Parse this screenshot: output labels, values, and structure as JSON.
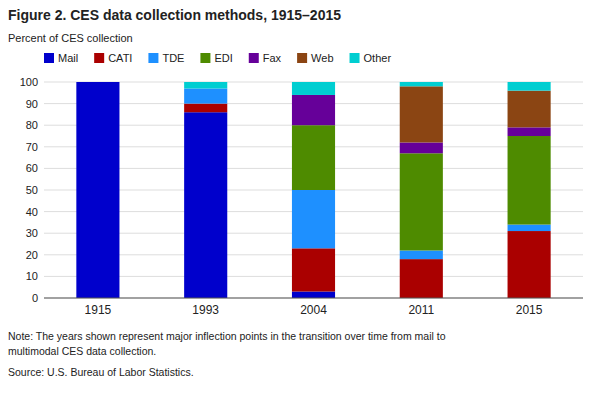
{
  "chart_data": {
    "type": "bar",
    "stacked": true,
    "title": "Figure 2. CES data collection methods, 1915–2015",
    "ylabel": "Percent of CES collection",
    "categories": [
      "1915",
      "1993",
      "2004",
      "2011",
      "2015"
    ],
    "series": [
      {
        "name": "Mail",
        "color": "#0000CC",
        "values": [
          100,
          86,
          3,
          0,
          0
        ]
      },
      {
        "name": "CATI",
        "color": "#AA0000",
        "values": [
          0,
          4,
          20,
          18,
          31
        ]
      },
      {
        "name": "TDE",
        "color": "#1E90FF",
        "values": [
          0,
          7,
          27,
          4,
          3
        ]
      },
      {
        "name": "EDI",
        "color": "#4E8B00",
        "values": [
          0,
          0,
          30,
          45,
          41
        ]
      },
      {
        "name": "Fax",
        "color": "#660099",
        "values": [
          0,
          0,
          14,
          5,
          4
        ]
      },
      {
        "name": "Web",
        "color": "#8B4513",
        "values": [
          0,
          0,
          0,
          26,
          17
        ]
      },
      {
        "name": "Other",
        "color": "#00CED1",
        "values": [
          0,
          3,
          6,
          2,
          4
        ]
      }
    ],
    "ylim": [
      0,
      100
    ],
    "yticks": [
      0,
      10,
      20,
      30,
      40,
      50,
      60,
      70,
      80,
      90,
      100
    ],
    "grid": true,
    "legend": "top",
    "annotations": [
      "Note: The years shown represent major inflection points in the transition over time from mail to",
      "multimodal CES data collection.",
      "Source: U.S. Bureau of Labor Statistics."
    ]
  }
}
